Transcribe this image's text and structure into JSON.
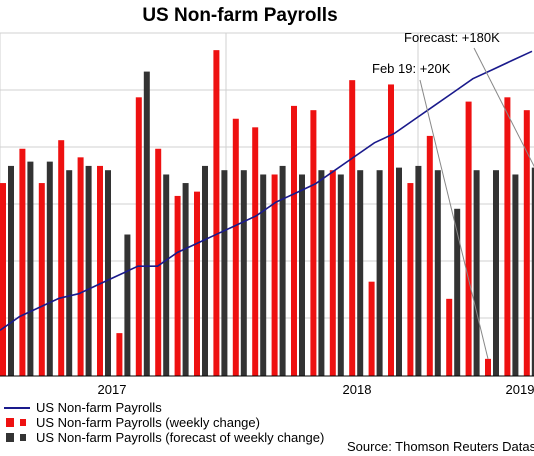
{
  "chart_data": {
    "type": "bar",
    "title": "US Non-farm Payrolls",
    "source": "Source: Thomson Reuters Datastream",
    "x_ticks": [
      "2017",
      "2018",
      "2019"
    ],
    "grid": true,
    "legend_placement": "bottom-left",
    "colors": {
      "line": "#1a1a8c",
      "actual": "#ee1111",
      "forecast": "#333333",
      "grid": "#d0d0d0"
    },
    "series": [
      {
        "name": "US Non-farm Payrolls",
        "kind": "line",
        "values": [
          145.0,
          145.3,
          145.5,
          145.7,
          145.8,
          146.0,
          146.2,
          146.4,
          146.4,
          146.7,
          146.9,
          147.1,
          147.3,
          147.5,
          147.8,
          148.0,
          148.2,
          148.5,
          148.8,
          149.1,
          149.3,
          149.6,
          149.9,
          150.2,
          150.5,
          150.7,
          150.9,
          151.1
        ]
      },
      {
        "name": "US Non-farm Payrolls (weekly change)",
        "kind": "bar",
        "values": [
          225,
          265,
          225,
          275,
          255,
          245,
          50,
          325,
          265,
          210,
          215,
          380,
          300,
          290,
          235,
          315,
          310,
          240,
          345,
          110,
          340,
          225,
          280,
          90,
          320,
          20,
          325,
          310
        ]
      },
      {
        "name": "US Non-farm Payrolls (forecast of weekly change)",
        "kind": "bar",
        "values": [
          245,
          250,
          250,
          240,
          245,
          240,
          165,
          355,
          235,
          225,
          245,
          240,
          240,
          235,
          245,
          235,
          240,
          235,
          240,
          240,
          243,
          245,
          240,
          195,
          240,
          240,
          235,
          243
        ]
      }
    ],
    "annotations": [
      {
        "text": "Forecast: +180K",
        "value_k": 180
      },
      {
        "text": "Feb 19: +20K",
        "value_k": 20
      }
    ]
  }
}
